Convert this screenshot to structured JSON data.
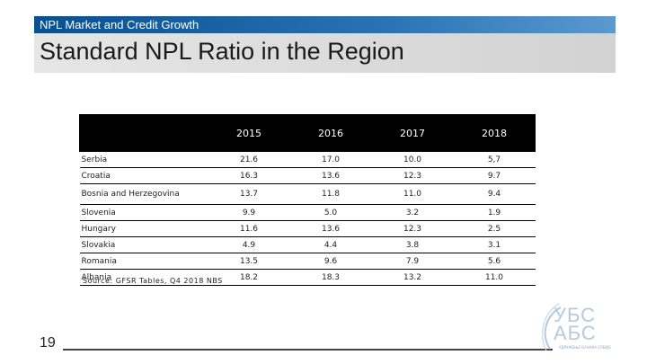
{
  "header": {
    "section_title": "NPL Market and Credit Growth",
    "slide_title": "Standard NPL Ratio in the Region"
  },
  "table": {
    "corner": "",
    "years": [
      "2015",
      "2016",
      "2017",
      "2018"
    ],
    "rows": [
      {
        "country": "Serbia",
        "values": [
          "21.6",
          "17.0",
          "10.0",
          "5,7"
        ]
      },
      {
        "country": "Croatia",
        "values": [
          "16.3",
          "13.6",
          "12.3",
          "9.7"
        ]
      },
      {
        "country": "Bosnia and Herzegovina",
        "values": [
          "13.7",
          "11.8",
          "11.0",
          "9.4"
        ]
      },
      {
        "country": "Slovenia",
        "values": [
          "9.9",
          "5.0",
          "3.2",
          "1.9"
        ]
      },
      {
        "country": "Hungary",
        "values": [
          "11.6",
          "13.6",
          "12.3",
          "2.5"
        ]
      },
      {
        "country": "Slovakia",
        "values": [
          "4.9",
          "4.4",
          "3.8",
          "3.1"
        ]
      },
      {
        "country": "Romania",
        "values": [
          "13.5",
          "9.6",
          "7.9",
          "5.6"
        ]
      },
      {
        "country": "Albania",
        "values": [
          "18.2",
          "18.3",
          "13.2",
          "11.0"
        ]
      }
    ]
  },
  "source": "Source: GFSR Tables, Q4 2018 NBS",
  "footer": {
    "page_number": "19",
    "logo_line1": "УБС",
    "logo_line2": "АБС",
    "logo_subtext": "УДРУЖЕЊЕ БАНАКА СРБИЈЕ"
  }
}
